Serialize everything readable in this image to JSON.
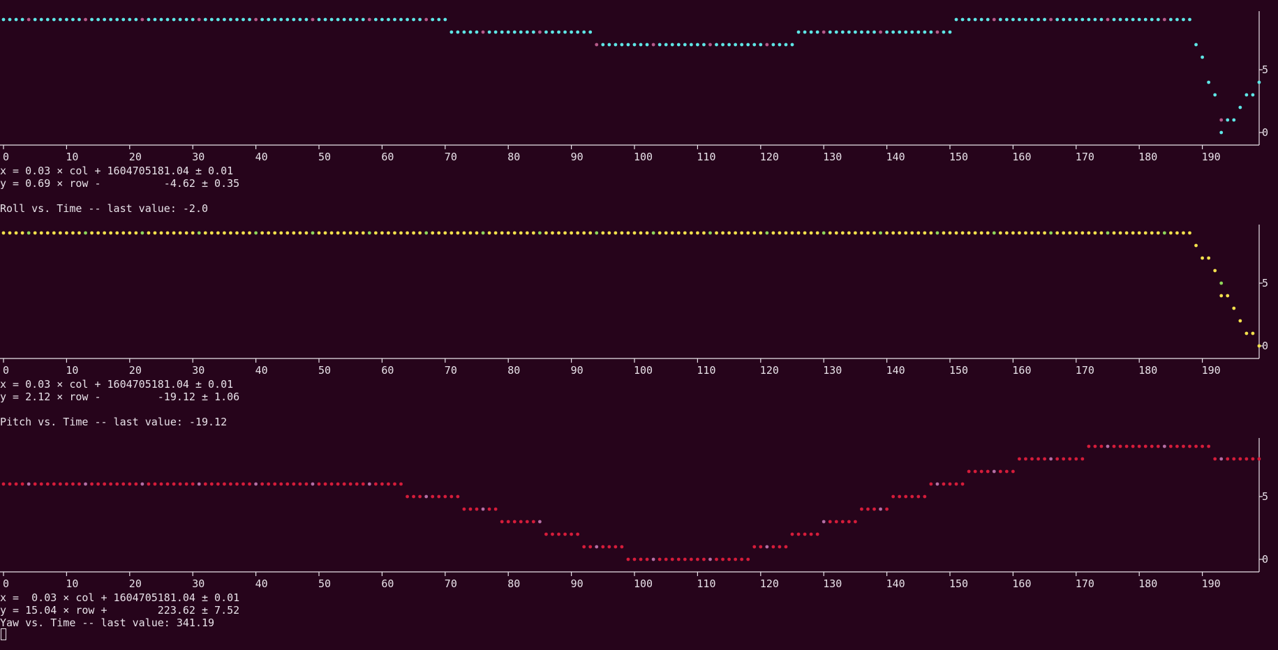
{
  "background": "#26041b",
  "terminal": {
    "panels": [
      {
        "fit_x": "x = 0.03 × col + 1604705181.04 ± 0.01",
        "fit_y": "y = 0.69 × row -          -4.62 ± 0.35",
        "title": "Roll vs. Time -- last value: -2.0"
      },
      {
        "fit_x": "x = 0.03 × col + 1604705181.04 ± 0.01",
        "fit_y": "y = 2.12 × row -         -19.12 ± 1.06",
        "title": "Pitch vs. Time -- last value: -19.12"
      },
      {
        "fit_x": "x =  0.03 × col + 1604705181.04 ± 0.01",
        "fit_y": "y = 15.04 × row +        223.62 ± 7.52",
        "title": "Yaw vs. Time -- last value: 341.19"
      }
    ]
  },
  "chart_data": [
    {
      "type": "scatter",
      "xlim": [
        0,
        199
      ],
      "ylim": [
        0,
        9
      ],
      "x_ticks": [
        0,
        10,
        20,
        30,
        40,
        50,
        60,
        70,
        80,
        90,
        100,
        110,
        120,
        130,
        140,
        150,
        160,
        170,
        180,
        190
      ],
      "y_ticks": [
        0,
        5
      ],
      "colors": {
        "primary": "#5ee6e6",
        "secondary": "#b55a8a"
      },
      "segments": [
        {
          "x0": 0,
          "x1": 70,
          "y": 9
        },
        {
          "x0": 71,
          "x1": 93,
          "y": 8
        },
        {
          "x0": 94,
          "x1": 125,
          "y": 7
        },
        {
          "x0": 126,
          "x1": 150,
          "y": 8
        },
        {
          "x0": 151,
          "x1": 188,
          "y": 9
        }
      ],
      "points": [
        [
          189,
          7
        ],
        [
          190,
          6
        ],
        [
          191,
          4
        ],
        [
          192,
          3
        ],
        [
          193,
          1
        ],
        [
          193,
          0
        ],
        [
          194,
          1
        ],
        [
          195,
          1
        ],
        [
          196,
          2
        ],
        [
          197,
          3
        ],
        [
          198,
          3
        ],
        [
          199,
          4
        ]
      ]
    },
    {
      "type": "scatter",
      "xlim": [
        0,
        199
      ],
      "ylim": [
        0,
        9
      ],
      "x_ticks": [
        0,
        10,
        20,
        30,
        40,
        50,
        60,
        70,
        80,
        90,
        100,
        110,
        120,
        130,
        140,
        150,
        160,
        170,
        180,
        190
      ],
      "y_ticks": [
        0,
        5
      ],
      "colors": {
        "primary": "#f2e04c",
        "secondary": "#8fd65a"
      },
      "segments": [
        {
          "x0": 0,
          "x1": 188,
          "y": 9
        }
      ],
      "points": [
        [
          189,
          8
        ],
        [
          190,
          7
        ],
        [
          191,
          7
        ],
        [
          192,
          6
        ],
        [
          193,
          5
        ],
        [
          193,
          4
        ],
        [
          194,
          4
        ],
        [
          195,
          3
        ],
        [
          196,
          2
        ],
        [
          197,
          1
        ],
        [
          198,
          1
        ],
        [
          199,
          0
        ]
      ]
    },
    {
      "type": "scatter",
      "xlim": [
        0,
        199
      ],
      "ylim": [
        0,
        9
      ],
      "x_ticks": [
        0,
        10,
        20,
        30,
        40,
        50,
        60,
        70,
        80,
        90,
        100,
        110,
        120,
        130,
        140,
        150,
        160,
        170,
        180,
        190
      ],
      "y_ticks": [
        0,
        5
      ],
      "colors": {
        "primary": "#d41c3a",
        "secondary": "#b46ea4"
      },
      "segments": [
        {
          "x0": 0,
          "x1": 63,
          "y": 6
        },
        {
          "x0": 64,
          "x1": 72,
          "y": 5
        },
        {
          "x0": 73,
          "x1": 78,
          "y": 4
        },
        {
          "x0": 79,
          "x1": 85,
          "y": 3
        },
        {
          "x0": 86,
          "x1": 91,
          "y": 2
        },
        {
          "x0": 92,
          "x1": 98,
          "y": 1
        },
        {
          "x0": 99,
          "x1": 118,
          "y": 0
        },
        {
          "x0": 119,
          "x1": 124,
          "y": 1
        },
        {
          "x0": 125,
          "x1": 129,
          "y": 2
        },
        {
          "x0": 130,
          "x1": 135,
          "y": 3
        },
        {
          "x0": 136,
          "x1": 140,
          "y": 4
        },
        {
          "x0": 141,
          "x1": 146,
          "y": 5
        },
        {
          "x0": 147,
          "x1": 152,
          "y": 6
        },
        {
          "x0": 153,
          "x1": 160,
          "y": 7
        },
        {
          "x0": 161,
          "x1": 171,
          "y": 8
        },
        {
          "x0": 172,
          "x1": 191,
          "y": 9
        },
        {
          "x0": 192,
          "x1": 199,
          "y": 8
        }
      ],
      "points": []
    }
  ]
}
